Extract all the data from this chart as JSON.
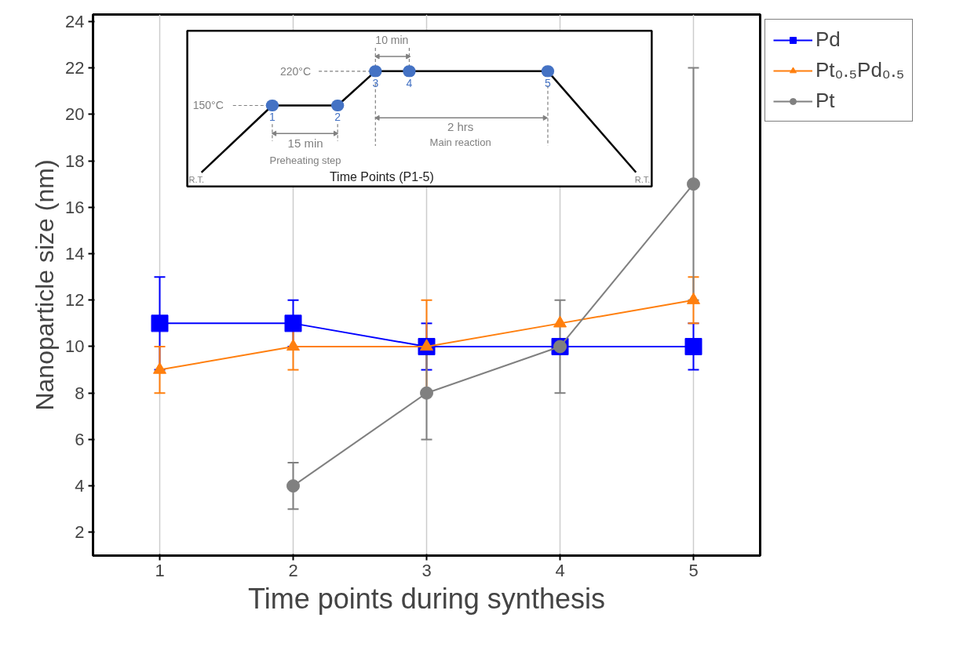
{
  "chart_data": [
    {
      "type": "line",
      "xlabel": "Time points during synthesis",
      "ylabel": "Nanoparticle size (nm)",
      "x": [
        1,
        2,
        3,
        4,
        5
      ],
      "xlim": [
        0.5,
        5.5
      ],
      "xticks": [
        1,
        2,
        3,
        4,
        5
      ],
      "ylim": [
        1,
        24.3
      ],
      "yticks": [
        2,
        4,
        6,
        8,
        10,
        12,
        14,
        16,
        18,
        20,
        22,
        24
      ],
      "grid": "x",
      "legend": "top right",
      "line_style": "solid",
      "series": [
        {
          "name": "Pd",
          "color": "#0000ff",
          "marker": "square",
          "values": [
            11,
            11,
            10,
            10,
            10
          ],
          "errors": [
            2,
            1,
            1,
            null,
            1
          ]
        },
        {
          "name": "Pt₀.₅Pd₀.₅",
          "color": "#ff7f0e",
          "marker": "triangle",
          "values": [
            9,
            10,
            10,
            11,
            12
          ],
          "errors": [
            1,
            1,
            2,
            null,
            1
          ]
        },
        {
          "name": "Pt",
          "color": "#808080",
          "marker": "circle",
          "values": [
            null,
            4,
            8,
            10,
            17
          ],
          "errors": [
            null,
            1,
            2,
            2,
            5
          ]
        }
      ]
    },
    {
      "type": "other",
      "title": "Time Points (P1-5)",
      "annotations": [
        "150°C",
        "220°C",
        "10 min",
        "15 min",
        "Preheating step",
        "2 hrs",
        "Main reaction",
        "R.T.",
        "R.T.",
        "1",
        "2",
        "3",
        "4",
        "5"
      ]
    }
  ]
}
